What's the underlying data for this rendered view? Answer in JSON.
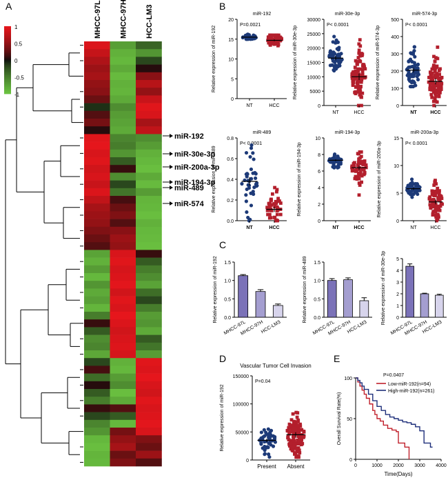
{
  "panel_letters": {
    "a": "A",
    "b": "B",
    "c": "C",
    "d": "D",
    "e": "E"
  },
  "colors": {
    "heat_high": "#e8161c",
    "heat_mid": "#0b0b0b",
    "heat_low": "#6cc541",
    "dot_navy": "#1d3a78",
    "sq_red": "#b31f2c",
    "bar_1": "#7b72b8",
    "bar_2": "#a49ed0",
    "bar_3": "#d7d4ec",
    "km_low": "#c01f2a",
    "km_high": "#1d2e7a"
  },
  "chart_data": [
    {
      "type": "heatmap",
      "panel": "A",
      "columns": [
        "MHCC-97L",
        "MHCC-97H",
        "HCC-LM3"
      ],
      "colorbar": {
        "ticks": [
          "1",
          "0.5",
          "0",
          "-0.5",
          "-1"
        ],
        "range": [
          -1,
          1
        ]
      },
      "rows": [
        [
          0.92,
          -0.72,
          -0.35
        ],
        [
          0.78,
          -0.85,
          -0.65
        ],
        [
          0.65,
          -0.9,
          -0.2
        ],
        [
          0.55,
          -0.8,
          0.05
        ],
        [
          0.6,
          -0.92,
          0.45
        ],
        [
          0.5,
          -0.85,
          0.7
        ],
        [
          0.45,
          -0.88,
          0.5
        ],
        [
          0.3,
          -0.8,
          0.8
        ],
        [
          -0.1,
          -0.6,
          0.95
        ],
        [
          0.2,
          -0.7,
          0.9
        ],
        [
          0.35,
          -0.75,
          0.6
        ],
        [
          0.05,
          -0.8,
          0.75
        ],
        [
          0.95,
          -0.55,
          -0.6
        ],
        [
          0.98,
          -0.5,
          -0.7
        ],
        [
          0.9,
          -0.65,
          -0.85
        ],
        [
          0.94,
          -0.3,
          -0.9
        ],
        [
          0.85,
          0.1,
          -0.95
        ],
        [
          0.9,
          -0.6,
          -0.8
        ],
        [
          0.8,
          -0.2,
          -0.92
        ],
        [
          0.92,
          -0.45,
          -0.7
        ],
        [
          0.75,
          0.15,
          -0.88
        ],
        [
          0.6,
          0.3,
          -0.9
        ],
        [
          0.55,
          0.4,
          -0.95
        ],
        [
          0.5,
          0.2,
          -0.85
        ],
        [
          0.4,
          0.45,
          -0.9
        ],
        [
          0.3,
          0.55,
          -0.92
        ],
        [
          0.2,
          0.5,
          -0.95
        ],
        [
          -0.75,
          0.9,
          0.1
        ],
        [
          -0.85,
          0.95,
          -0.3
        ],
        [
          -0.7,
          0.88,
          -0.5
        ],
        [
          -0.9,
          0.92,
          -0.6
        ],
        [
          -0.65,
          0.97,
          -0.75
        ],
        [
          -0.8,
          0.85,
          -0.4
        ],
        [
          -0.72,
          0.95,
          -0.2
        ],
        [
          -0.88,
          0.9,
          -0.5
        ],
        [
          -0.5,
          0.99,
          -0.7
        ],
        [
          0.1,
          0.92,
          -0.65
        ],
        [
          -0.3,
          0.85,
          -0.8
        ],
        [
          -0.6,
          0.9,
          -0.3
        ],
        [
          -0.55,
          0.93,
          -0.45
        ],
        [
          -0.78,
          0.88,
          -0.7
        ],
        [
          -0.2,
          -0.85,
          0.95
        ],
        [
          0.15,
          -0.9,
          0.92
        ],
        [
          -0.4,
          -0.7,
          0.98
        ],
        [
          0.05,
          -0.6,
          0.9
        ],
        [
          -0.3,
          -0.95,
          0.85
        ],
        [
          -0.5,
          -0.8,
          0.95
        ],
        [
          0.1,
          0.2,
          0.9
        ],
        [
          -0.2,
          -0.3,
          0.93
        ],
        [
          -0.55,
          -0.9,
          0.97
        ],
        [
          -0.65,
          0.35,
          0.9
        ],
        [
          -0.9,
          0.5,
          0.4
        ],
        [
          -0.95,
          0.6,
          0.3
        ],
        [
          -0.88,
          0.3,
          0.55
        ],
        [
          -0.9,
          0.4,
          0.2
        ]
      ],
      "labels": [
        {
          "text": "miR-192",
          "row": 12
        },
        {
          "text": "miR-30e-3p",
          "row": 14
        },
        {
          "text": "miR-200a-3p",
          "row": 16
        },
        {
          "text": "miR-194-3p",
          "row": 18
        },
        {
          "text": "miR-489",
          "row": 19
        },
        {
          "text": "miR-574",
          "row": 22
        }
      ]
    },
    {
      "type": "scatter",
      "panel": "B",
      "title": "miR-192",
      "ylabel": "Relative expression of miR-192",
      "ylim": [
        0,
        20
      ],
      "yticks": [
        "0",
        "5",
        "10",
        "15",
        "20"
      ],
      "categories": [
        "NT",
        "HCC"
      ],
      "bold_categories": false,
      "p_text": "P=0.0021",
      "groups": [
        {
          "center": 15.5,
          "spread": 0.4,
          "n": 40,
          "mean": 15.5,
          "min": 15,
          "max": 16.2
        },
        {
          "center": 14.8,
          "spread": 0.9,
          "n": 70,
          "mean": 14.7,
          "min": 9,
          "max": 16
        }
      ]
    },
    {
      "type": "scatter",
      "panel": "B",
      "title": "miR-30e-3p",
      "ylabel": "Relative expression of miR-30e-3p",
      "ylim": [
        0,
        30000
      ],
      "yticks": [
        "0",
        "5000",
        "10000",
        "15000",
        "20000",
        "25000",
        "30000"
      ],
      "categories": [
        "NT",
        "HCC"
      ],
      "bold_categories": false,
      "p_text": "P< 0.0001",
      "groups": [
        {
          "center": 16500,
          "spread": 3000,
          "n": 60,
          "mean": 16500,
          "min": 10000,
          "max": 24000
        },
        {
          "center": 10000,
          "spread": 4500,
          "n": 100,
          "mean": 10000,
          "min": 0,
          "max": 27000
        }
      ]
    },
    {
      "type": "scatter",
      "panel": "B",
      "title": "miR-574-3p",
      "ylabel": "Relative expression of miR-574-3p",
      "ylim": [
        0,
        500
      ],
      "yticks": [
        "0",
        "100",
        "200",
        "300",
        "400",
        "500"
      ],
      "categories": [
        "NT",
        "HCC"
      ],
      "bold_categories": true,
      "p_text": "P< 0.0001",
      "groups": [
        {
          "center": 205,
          "spread": 55,
          "n": 60,
          "mean": 205,
          "min": 110,
          "max": 340
        },
        {
          "center": 140,
          "spread": 70,
          "n": 100,
          "mean": 140,
          "min": 0,
          "max": 360
        }
      ]
    },
    {
      "type": "scatter",
      "panel": "B",
      "title": "miR-489",
      "ylabel": "Relative expression of miR-489",
      "ylim": [
        0,
        0.8
      ],
      "yticks": [
        "0.0",
        "0.2",
        "0.4",
        "0.6",
        "0.8"
      ],
      "categories": [
        "NT",
        "HCC"
      ],
      "bold_categories": true,
      "p_text": "P< 0.0001",
      "groups": [
        {
          "center": 0.38,
          "spread": 0.16,
          "n": 40,
          "mean": 0.38,
          "min": 0.0,
          "max": 0.73
        },
        {
          "center": 0.12,
          "spread": 0.1,
          "n": 45,
          "mean": 0.11,
          "min": 0.0,
          "max": 0.32
        }
      ]
    },
    {
      "type": "scatter",
      "panel": "B",
      "title": "miR-194-3p",
      "ylabel": "Relative expression of miR-194-3p",
      "ylim": [
        0,
        10
      ],
      "yticks": [
        "0",
        "2",
        "4",
        "6",
        "8",
        "10"
      ],
      "categories": [
        "NT",
        "HCC"
      ],
      "bold_categories": true,
      "p_text": "",
      "groups": [
        {
          "center": 7.3,
          "spread": 0.45,
          "n": 45,
          "mean": 7.3,
          "min": 6.4,
          "max": 8.4
        },
        {
          "center": 6.4,
          "spread": 1.0,
          "n": 55,
          "mean": 6.4,
          "min": 0.9,
          "max": 8.3
        }
      ]
    },
    {
      "type": "scatter",
      "panel": "B",
      "title": "miR-200a-3p",
      "ylabel": "Relative expression of miR-200a-3p",
      "ylim": [
        0,
        15
      ],
      "yticks": [
        "0",
        "5",
        "10",
        "15"
      ],
      "categories": [
        "NT",
        "HCC"
      ],
      "bold_categories": false,
      "p_text": "P< 0.0001",
      "groups": [
        {
          "center": 5.8,
          "spread": 0.8,
          "n": 50,
          "mean": 5.8,
          "min": 4.2,
          "max": 7.5
        },
        {
          "center": 3.4,
          "spread": 1.7,
          "n": 80,
          "mean": 3.4,
          "min": 0,
          "max": 10
        }
      ]
    },
    {
      "type": "bar",
      "panel": "C",
      "ylabel": "Relative expression of miR-192",
      "categories": [
        "MHCC-97L",
        "MHCC-97H",
        "HCC-LM3"
      ],
      "values": [
        1.13,
        0.7,
        0.32
      ],
      "errors": [
        0.03,
        0.05,
        0.04
      ],
      "ylim": [
        0,
        1.5
      ],
      "yticks": [
        "0.0",
        "0.5",
        "1.0",
        "1.5"
      ],
      "ytick_values": [
        0,
        0.5,
        1.0,
        1.5
      ]
    },
    {
      "type": "bar",
      "panel": "C",
      "ylabel": "Relative expression of miR-489",
      "categories": [
        "MHCC-97L",
        "MHCC-97H",
        "HCC-LM3"
      ],
      "values": [
        1.0,
        1.02,
        0.45
      ],
      "errors": [
        0.05,
        0.05,
        0.08
      ],
      "ylim": [
        0,
        1.5
      ],
      "yticks": [
        "0.0",
        "0.5",
        "1.0",
        "1.5"
      ],
      "ytick_values": [
        0,
        0.5,
        1.0,
        1.5
      ]
    },
    {
      "type": "bar",
      "panel": "C",
      "ylabel": "Relative expression of miR-30e-3p",
      "categories": [
        "MHCC-97L",
        "MHCC-97H",
        "HCC-LM3"
      ],
      "values": [
        4.35,
        2.0,
        1.88
      ],
      "errors": [
        0.2,
        0.05,
        0.08
      ],
      "ylim": [
        0,
        5
      ],
      "yticks": [
        "0",
        "1",
        "2",
        "3",
        "4",
        "5"
      ],
      "ytick_values": [
        0,
        1,
        2,
        3,
        4,
        5
      ]
    },
    {
      "type": "scatter",
      "panel": "D",
      "title": "Vascular Tumor Cell Invasion",
      "ylabel": "Relative expression of miR-192",
      "ylim": [
        0,
        150000
      ],
      "yticks": [
        "0",
        "50000",
        "100000",
        "150000"
      ],
      "categories": [
        "Present",
        "Absent"
      ],
      "bold_categories": false,
      "p_text": "P=0.04",
      "groups": [
        {
          "center": 35000,
          "spread": 12000,
          "n": 45,
          "mean": 35000,
          "min": 5000,
          "max": 75000
        },
        {
          "center": 45000,
          "spread": 18000,
          "n": 110,
          "mean": 45000,
          "min": 5000,
          "max": 135000
        }
      ]
    },
    {
      "type": "line",
      "panel": "E",
      "xlabel": "Time(Days)",
      "ylabel": "Overall Survival Rate(%)",
      "xlim": [
        0,
        4000
      ],
      "ylim": [
        0,
        100
      ],
      "xticks": [
        "0",
        "1000",
        "2000",
        "3000",
        "4000"
      ],
      "yticks": [
        "0",
        "50",
        "100"
      ],
      "p_text": "P=0.0407",
      "series": [
        {
          "name": "Low-miR-192(n=94)",
          "color_key": "km_low",
          "x": [
            0,
            100,
            200,
            300,
            400,
            500,
            650,
            800,
            900,
            1000,
            1150,
            1300,
            1500,
            1700,
            1900,
            2000,
            2100,
            2300,
            2450,
            2500
          ],
          "y": [
            100,
            95,
            90,
            85,
            80,
            75,
            68,
            60,
            55,
            50,
            47,
            42,
            38,
            36,
            34,
            20,
            20,
            15,
            15,
            0
          ]
        },
        {
          "name": "High-miR-192(n=261)",
          "color_key": "km_high",
          "x": [
            0,
            100,
            200,
            300,
            400,
            600,
            800,
            1000,
            1200,
            1400,
            1600,
            1800,
            2000,
            2200,
            2400,
            2600,
            2800,
            3000,
            3200,
            3500,
            3600
          ],
          "y": [
            100,
            97,
            94,
            90,
            86,
            80,
            72,
            65,
            60,
            55,
            52,
            50,
            48,
            46,
            45,
            43,
            40,
            35,
            20,
            15,
            15
          ]
        }
      ]
    }
  ]
}
